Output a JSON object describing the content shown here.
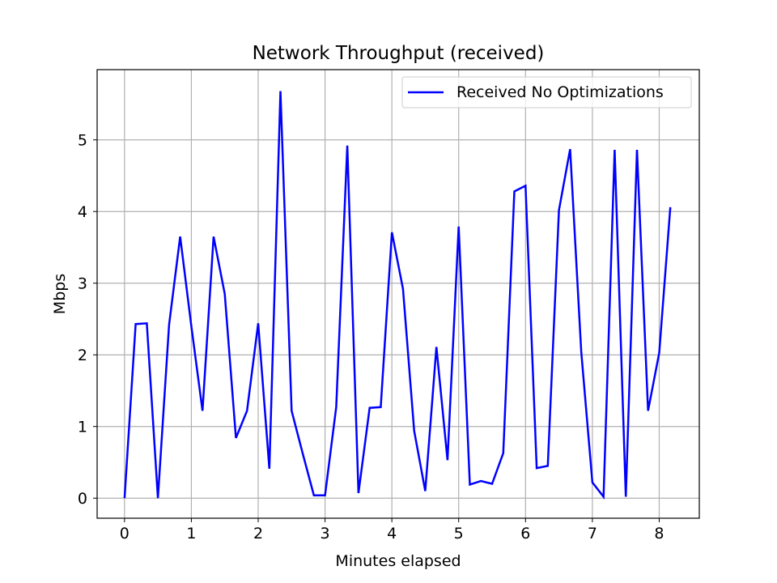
{
  "chart_data": {
    "type": "line",
    "title": "Network Throughput (received)",
    "xlabel": "Minutes elapsed",
    "ylabel": "Mbps",
    "xlim": [
      -0.41,
      8.6
    ],
    "ylim": [
      -0.28,
      5.98
    ],
    "xticks": [
      0,
      1,
      2,
      3,
      4,
      5,
      6,
      7,
      8
    ],
    "yticks": [
      0,
      1,
      2,
      3,
      4,
      5
    ],
    "grid": true,
    "legend_position": "top-right",
    "series": [
      {
        "name": "Received No Optimizations",
        "color": "#0000ff",
        "x": [
          0,
          0.167,
          0.333,
          0.5,
          0.667,
          0.833,
          1.0,
          1.167,
          1.333,
          1.5,
          1.667,
          1.833,
          2.0,
          2.167,
          2.333,
          2.5,
          2.667,
          2.833,
          3.0,
          3.167,
          3.333,
          3.5,
          3.667,
          3.833,
          4.0,
          4.167,
          4.333,
          4.5,
          4.667,
          4.833,
          5.0,
          5.167,
          5.333,
          5.5,
          5.667,
          5.833,
          6.0,
          6.167,
          6.333,
          6.5,
          6.667,
          6.833,
          7.0,
          7.167,
          7.333,
          7.5,
          7.667,
          7.833,
          8.0,
          8.167
        ],
        "y": [
          0.0,
          2.43,
          2.44,
          0.0,
          2.42,
          3.65,
          2.4,
          1.22,
          3.65,
          2.85,
          0.84,
          1.22,
          2.44,
          0.41,
          5.68,
          1.22,
          0.62,
          0.04,
          0.04,
          1.27,
          4.92,
          0.07,
          1.26,
          1.27,
          3.71,
          2.92,
          0.94,
          0.1,
          2.11,
          0.53,
          3.79,
          0.19,
          0.24,
          0.2,
          0.63,
          4.28,
          4.36,
          0.42,
          0.45,
          4.02,
          4.87,
          2.05,
          0.22,
          0.02,
          4.86,
          0.02,
          4.86,
          1.22,
          2.03,
          4.06
        ]
      }
    ]
  }
}
